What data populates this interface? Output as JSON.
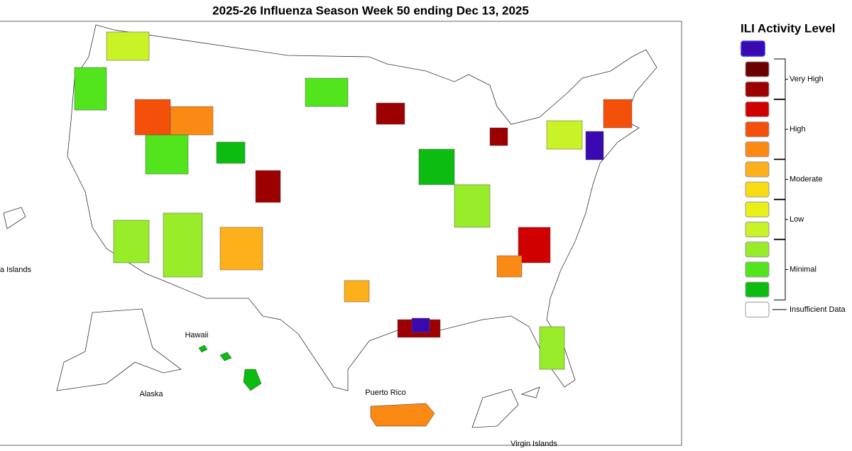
{
  "title": "2025-26 Influenza Season Week 50 ending Dec 13, 2025",
  "map_labels": [
    "a Islands",
    "Hawaii",
    "Alaska",
    "Puerto Rico",
    "Virgin Islands"
  ],
  "legend": {
    "title": "ILI Activity Level",
    "top_swatch_color": "#3a0ab0",
    "levels": [
      {
        "label": "Very High",
        "colors": [
          "#6b0000",
          "#9c0000"
        ]
      },
      {
        "label": "High",
        "colors": [
          "#d10000",
          "#f4500a",
          "#fb8a14"
        ]
      },
      {
        "label": "Moderate",
        "colors": [
          "#fdb01a",
          "#f9dc12"
        ]
      },
      {
        "label": "Low",
        "colors": [
          "#e9f018",
          "#c9f227"
        ]
      },
      {
        "label": "Minimal",
        "colors": [
          "#98ec2a",
          "#52e41c",
          "#0cbc10"
        ]
      },
      {
        "label": "Insufficient Data",
        "colors": [
          "#ffffff"
        ]
      }
    ]
  }
}
